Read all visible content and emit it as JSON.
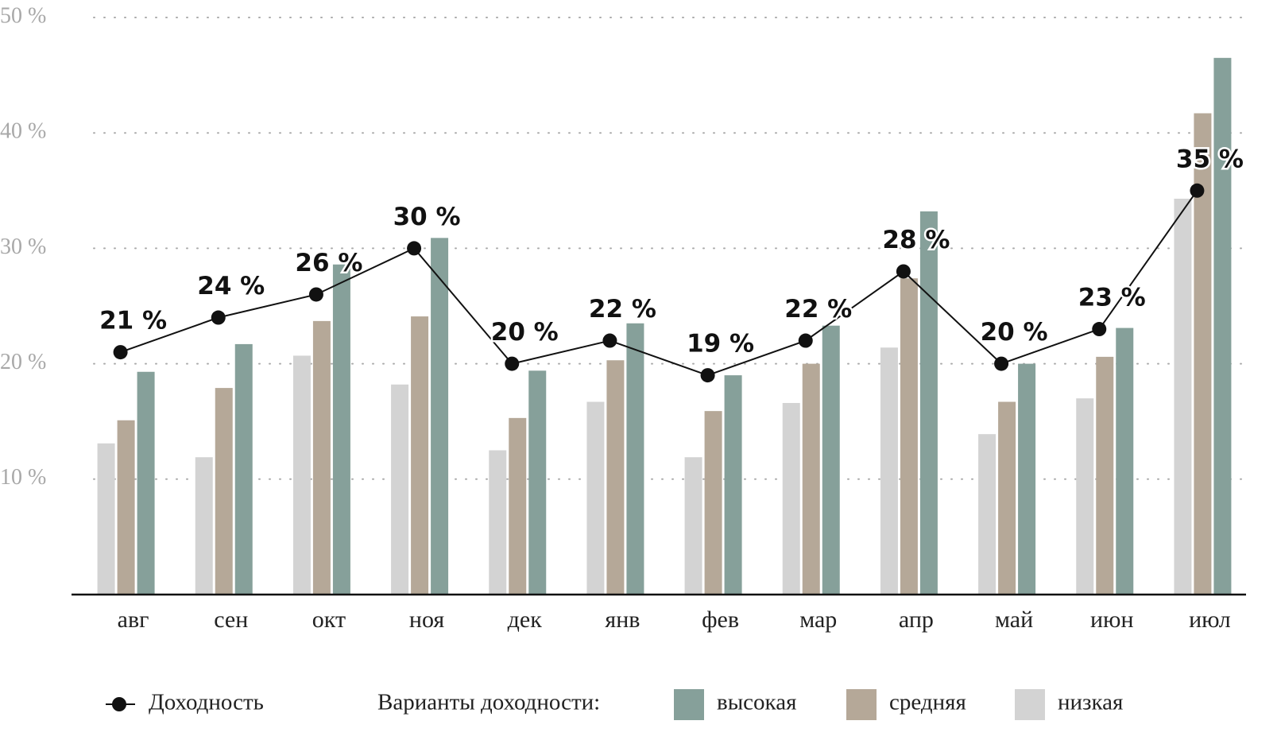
{
  "chart_data": {
    "type": "bar",
    "categories": [
      "авг",
      "сен",
      "окт",
      "ноя",
      "дек",
      "янв",
      "фев",
      "мар",
      "апр",
      "май",
      "июн",
      "июл"
    ],
    "series": [
      {
        "name": "низкая",
        "color": "#d3d3d3",
        "values": [
          13.1,
          11.9,
          20.7,
          18.2,
          12.5,
          16.7,
          11.9,
          16.6,
          21.4,
          13.9,
          17.0,
          34.3
        ]
      },
      {
        "name": "средняя",
        "color": "#b5a898",
        "values": [
          15.1,
          17.9,
          23.7,
          24.1,
          15.3,
          20.3,
          15.9,
          20.0,
          27.4,
          16.7,
          20.6,
          41.7
        ]
      },
      {
        "name": "высокая",
        "color": "#86a09a",
        "values": [
          19.3,
          21.7,
          28.6,
          30.9,
          19.4,
          23.5,
          19.0,
          23.3,
          33.2,
          20.0,
          23.1,
          46.5
        ]
      }
    ],
    "line": {
      "name": "Доходность",
      "color": "#111111",
      "values": [
        21,
        24,
        26,
        30,
        20,
        22,
        19,
        22,
        28,
        20,
        23,
        35
      ],
      "value_labels": [
        "21 %",
        "24 %",
        "26 %",
        "30 %",
        "20 %",
        "22 %",
        "19 %",
        "22 %",
        "28 %",
        "20 %",
        "23 %",
        "35 %"
      ]
    },
    "legend_title": "Варианты доходности:",
    "ylim": [
      0,
      50
    ],
    "yticks": [
      {
        "value": 10,
        "label": "10 %"
      },
      {
        "value": 20,
        "label": "20 %"
      },
      {
        "value": 30,
        "label": "30 %"
      },
      {
        "value": 40,
        "label": "40 %"
      },
      {
        "value": 50,
        "label": "50 %"
      }
    ],
    "grid": true
  }
}
